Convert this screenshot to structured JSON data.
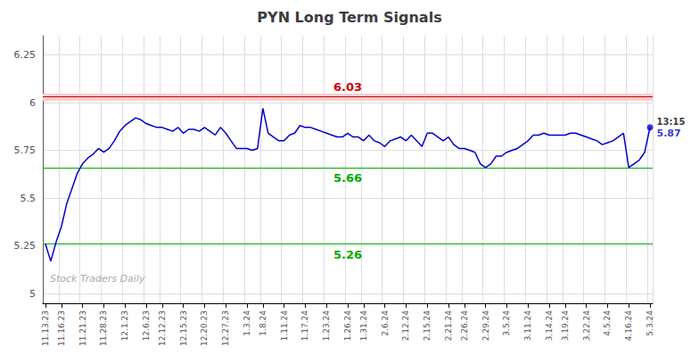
{
  "chart_data": {
    "type": "line",
    "title": "PYN Long Term Signals",
    "categories": [
      "11.13.23",
      null,
      null,
      "11.16.23",
      null,
      null,
      null,
      "11.21.23",
      null,
      null,
      null,
      "11.28.23",
      null,
      null,
      null,
      "12.1.23",
      null,
      null,
      null,
      "12.6.23",
      null,
      null,
      "12.12.23",
      null,
      null,
      null,
      "12.15.23",
      null,
      null,
      null,
      "12.20.23",
      null,
      null,
      null,
      "12.27.23",
      null,
      null,
      null,
      "1.3.24",
      null,
      null,
      "1.8.24",
      null,
      null,
      null,
      "1.11.24",
      null,
      null,
      null,
      "1.17.24",
      null,
      null,
      null,
      "1.23.24",
      null,
      null,
      null,
      "1.26.24",
      null,
      null,
      "1.31.24",
      null,
      null,
      null,
      "2.6.24",
      null,
      null,
      null,
      "2.12.24",
      null,
      null,
      null,
      "2.15.24",
      null,
      null,
      null,
      "2.21.24",
      null,
      null,
      "2.26.24",
      null,
      null,
      null,
      "2.29.24",
      null,
      null,
      null,
      "3.5.24",
      null,
      null,
      null,
      "3.11.24",
      null,
      null,
      null,
      "3.14.24",
      null,
      null,
      "3.19.24",
      null,
      null,
      null,
      "3.22.24",
      null,
      null,
      null,
      "4.5.24",
      null,
      null,
      null,
      "4.16.24",
      null,
      null,
      null,
      "5.3.24"
    ],
    "values": [
      5.26,
      5.17,
      5.27,
      5.35,
      5.47,
      5.55,
      5.63,
      5.68,
      5.71,
      5.73,
      5.76,
      5.74,
      5.76,
      5.8,
      5.85,
      5.88,
      5.9,
      5.92,
      5.91,
      5.89,
      5.88,
      5.87,
      5.87,
      5.86,
      5.85,
      5.87,
      5.84,
      5.86,
      5.86,
      5.85,
      5.87,
      5.85,
      5.83,
      5.87,
      5.84,
      5.8,
      5.76,
      5.76,
      5.76,
      5.75,
      5.76,
      5.97,
      5.84,
      5.82,
      5.8,
      5.8,
      5.83,
      5.84,
      5.88,
      5.87,
      5.87,
      5.86,
      5.85,
      5.84,
      5.83,
      5.82,
      5.82,
      5.84,
      5.82,
      5.82,
      5.8,
      5.83,
      5.8,
      5.79,
      5.77,
      5.8,
      5.81,
      5.82,
      5.8,
      5.83,
      5.8,
      5.77,
      5.84,
      5.84,
      5.82,
      5.8,
      5.82,
      5.78,
      5.76,
      5.76,
      5.75,
      5.74,
      5.68,
      5.66,
      5.68,
      5.72,
      5.72,
      5.74,
      5.75,
      5.76,
      5.78,
      5.8,
      5.83,
      5.83,
      5.84,
      5.83,
      5.83,
      5.83,
      5.83,
      5.84,
      5.84,
      5.83,
      5.82,
      5.81,
      5.8,
      5.78,
      5.79,
      5.8,
      5.82,
      5.84,
      5.66,
      5.68,
      5.7,
      5.74,
      5.87
    ],
    "color": "#0000cc",
    "ylim": [
      4.95,
      6.35
    ],
    "yticks": [
      5,
      5.25,
      5.5,
      5.75,
      6,
      6.25
    ],
    "grid": true,
    "hlines": [
      {
        "value": 6.03,
        "label": "6.03",
        "color": "#cc0000",
        "band_color": "#ffcccc",
        "label_position": "above"
      },
      {
        "value": 5.66,
        "label": "5.66",
        "color": "#00aa00",
        "label_position": "below"
      },
      {
        "value": 5.26,
        "label": "5.26",
        "color": "#00aa00",
        "label_position": "below"
      }
    ],
    "last_point": {
      "value": 5.87,
      "label": "5.87",
      "time_label": "13:15"
    },
    "watermark": {
      "text": "Stock Traders Daily",
      "color": "#aaaaaa"
    }
  }
}
